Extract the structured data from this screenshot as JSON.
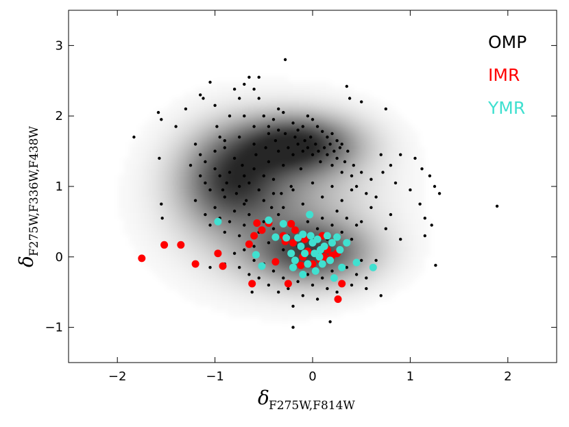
{
  "chart_data": {
    "type": "scatter",
    "xlabel": {
      "main": "δ",
      "sub": "F275W,F814W"
    },
    "ylabel": {
      "main": "δ",
      "sub": "F275W,F336W,F438W"
    },
    "xlim": [
      -2.5,
      2.5
    ],
    "ylim": [
      -1.5,
      3.5
    ],
    "x_ticks": [
      -2,
      -1,
      0,
      1,
      2
    ],
    "y_ticks": [
      -1,
      0,
      1,
      2,
      3
    ],
    "x_tick_labels": [
      "−2",
      "−1",
      "0",
      "1",
      "2"
    ],
    "y_tick_labels": [
      "−1",
      "0",
      "1",
      "2",
      "3"
    ],
    "grid": false,
    "legend_position": "top-right",
    "density_background": {
      "color": "#000000",
      "blobs": [
        {
          "x": -0.15,
          "y": 1.6,
          "sx": 0.42,
          "sy": 0.28,
          "w": 0.75
        },
        {
          "x": -0.85,
          "y": 1.1,
          "sx": 0.35,
          "sy": 0.45,
          "w": 0.55
        },
        {
          "x": 0.0,
          "y": 0.05,
          "sx": 0.42,
          "sy": 0.3,
          "w": 0.6
        },
        {
          "x": -0.4,
          "y": 0.8,
          "sx": 0.65,
          "sy": 0.7,
          "w": 0.35
        }
      ]
    },
    "series": [
      {
        "name": "OMP",
        "color": "#000000",
        "marker_size": "small",
        "points": [
          [
            -1.83,
            1.7
          ],
          [
            -1.58,
            2.05
          ],
          [
            -1.55,
            1.95
          ],
          [
            -1.57,
            1.4
          ],
          [
            -1.55,
            0.75
          ],
          [
            -1.54,
            0.55
          ],
          [
            -1.4,
            1.85
          ],
          [
            -1.3,
            2.1
          ],
          [
            -1.15,
            2.3
          ],
          [
            -1.12,
            2.25
          ],
          [
            -1.2,
            1.6
          ],
          [
            -1.25,
            1.3
          ],
          [
            -1.1,
            1.35
          ],
          [
            -1.05,
            2.48
          ],
          [
            -1.0,
            2.15
          ],
          [
            -0.98,
            1.85
          ],
          [
            -0.95,
            1.7
          ],
          [
            -0.9,
            1.55
          ],
          [
            -0.85,
            2.0
          ],
          [
            -0.8,
            2.38
          ],
          [
            -0.75,
            2.25
          ],
          [
            -0.7,
            2.0
          ],
          [
            -0.65,
            2.55
          ],
          [
            -0.6,
            2.38
          ],
          [
            -0.55,
            2.25
          ],
          [
            -0.5,
            2.0
          ],
          [
            -0.45,
            1.85
          ],
          [
            -0.4,
            1.95
          ],
          [
            -0.35,
            2.1
          ],
          [
            -0.3,
            2.05
          ],
          [
            -0.28,
            2.8
          ],
          [
            -0.2,
            1.9
          ],
          [
            -0.15,
            1.8
          ],
          [
            -0.1,
            1.85
          ],
          [
            -0.05,
            2.0
          ],
          [
            0.0,
            1.95
          ],
          [
            0.05,
            1.85
          ],
          [
            0.1,
            1.78
          ],
          [
            0.15,
            1.7
          ],
          [
            0.2,
            1.75
          ],
          [
            0.25,
            1.65
          ],
          [
            0.3,
            1.6
          ],
          [
            0.35,
            2.42
          ],
          [
            0.5,
            2.2
          ],
          [
            0.38,
            2.25
          ],
          [
            -0.55,
            2.55
          ],
          [
            -0.7,
            2.45
          ],
          [
            -1.15,
            1.15
          ],
          [
            -1.1,
            1.05
          ],
          [
            -1.05,
            0.95
          ],
          [
            -1.0,
            1.25
          ],
          [
            -0.95,
            1.15
          ],
          [
            -0.92,
            0.95
          ],
          [
            -0.9,
            0.85
          ],
          [
            -0.88,
            1.05
          ],
          [
            -0.85,
            1.2
          ],
          [
            -0.8,
            1.4
          ],
          [
            -0.78,
            0.9
          ],
          [
            -0.75,
            1.0
          ],
          [
            -0.72,
            1.3
          ],
          [
            -0.7,
            1.15
          ],
          [
            -0.68,
            0.8
          ],
          [
            -0.65,
            1.05
          ],
          [
            -0.6,
            1.25
          ],
          [
            -0.58,
            1.45
          ],
          [
            -0.55,
            0.95
          ],
          [
            -0.5,
            1.15
          ],
          [
            -0.48,
            1.55
          ],
          [
            -0.45,
            1.35
          ],
          [
            -0.42,
            0.7
          ],
          [
            -0.4,
            1.1
          ],
          [
            -0.38,
            1.65
          ],
          [
            -0.35,
            1.5
          ],
          [
            -0.32,
            0.9
          ],
          [
            -0.3,
            1.3
          ],
          [
            -0.28,
            1.75
          ],
          [
            -0.25,
            1.55
          ],
          [
            -0.22,
            1.0
          ],
          [
            -0.2,
            1.45
          ],
          [
            -0.18,
            1.7
          ],
          [
            -0.15,
            1.6
          ],
          [
            -0.12,
            1.25
          ],
          [
            -0.1,
            1.5
          ],
          [
            -0.08,
            1.65
          ],
          [
            -0.05,
            1.55
          ],
          [
            -0.02,
            1.7
          ],
          [
            0.0,
            1.45
          ],
          [
            0.03,
            1.6
          ],
          [
            0.06,
            1.5
          ],
          [
            0.08,
            1.35
          ],
          [
            0.12,
            1.55
          ],
          [
            0.15,
            1.45
          ],
          [
            0.18,
            1.6
          ],
          [
            0.2,
            1.3
          ],
          [
            0.22,
            1.5
          ],
          [
            0.25,
            1.4
          ],
          [
            0.28,
            1.55
          ],
          [
            0.3,
            1.2
          ],
          [
            0.33,
            1.35
          ],
          [
            0.36,
            1.5
          ],
          [
            0.4,
            1.15
          ],
          [
            0.42,
            1.3
          ],
          [
            0.45,
            1.0
          ],
          [
            0.5,
            1.2
          ],
          [
            0.55,
            0.9
          ],
          [
            0.6,
            1.1
          ],
          [
            0.65,
            0.85
          ],
          [
            0.7,
            1.45
          ],
          [
            0.72,
            1.2
          ],
          [
            0.75,
            2.1
          ],
          [
            0.8,
            1.3
          ],
          [
            0.85,
            1.05
          ],
          [
            0.9,
            1.45
          ],
          [
            1.0,
            0.95
          ],
          [
            1.05,
            1.4
          ],
          [
            1.1,
            0.75
          ],
          [
            1.12,
            1.25
          ],
          [
            1.15,
            0.55
          ],
          [
            1.2,
            1.15
          ],
          [
            1.22,
            0.45
          ],
          [
            1.25,
            1.0
          ],
          [
            1.3,
            0.9
          ],
          [
            1.26,
            -0.12
          ],
          [
            1.89,
            0.72
          ],
          [
            1.15,
            0.3
          ],
          [
            0.8,
            0.6
          ],
          [
            0.9,
            0.25
          ],
          [
            0.75,
            0.4
          ],
          [
            0.6,
            0.7
          ],
          [
            0.55,
            -0.3
          ],
          [
            0.65,
            -0.05
          ],
          [
            0.7,
            -0.55
          ],
          [
            0.5,
            0.5
          ],
          [
            -1.2,
            0.8
          ],
          [
            -1.1,
            0.6
          ],
          [
            -1.05,
            0.45
          ],
          [
            -1.0,
            0.7
          ],
          [
            -0.95,
            0.55
          ],
          [
            -0.9,
            0.35
          ],
          [
            -0.85,
            0.5
          ],
          [
            -0.8,
            0.65
          ],
          [
            -0.75,
            0.3
          ],
          [
            -0.7,
            0.45
          ],
          [
            -0.65,
            0.6
          ],
          [
            -0.6,
            0.15
          ],
          [
            -0.55,
            0.35
          ],
          [
            -0.5,
            0.5
          ],
          [
            -0.45,
            0.2
          ],
          [
            -0.4,
            0.4
          ],
          [
            -0.35,
            0.6
          ],
          [
            -0.3,
            0.1
          ],
          [
            -0.25,
            0.3
          ],
          [
            -0.2,
            0.45
          ],
          [
            -0.15,
            0.15
          ],
          [
            -0.1,
            0.35
          ],
          [
            -0.05,
            0.5
          ],
          [
            0.0,
            0.2
          ],
          [
            0.05,
            0.4
          ],
          [
            0.1,
            0.55
          ],
          [
            0.15,
            0.25
          ],
          [
            0.2,
            0.45
          ],
          [
            0.25,
            0.65
          ],
          [
            0.3,
            0.35
          ],
          [
            0.35,
            0.55
          ],
          [
            0.4,
            0.25
          ],
          [
            0.45,
            0.45
          ],
          [
            -0.8,
            0.05
          ],
          [
            -0.75,
            -0.15
          ],
          [
            -0.7,
            0.1
          ],
          [
            -0.65,
            -0.25
          ],
          [
            -0.6,
            -0.05
          ],
          [
            -0.55,
            -0.3
          ],
          [
            -0.5,
            -0.1
          ],
          [
            -0.45,
            -0.4
          ],
          [
            -0.4,
            -0.2
          ],
          [
            -0.35,
            -0.5
          ],
          [
            -0.3,
            -0.3
          ],
          [
            -0.25,
            -0.45
          ],
          [
            -0.2,
            -0.15
          ],
          [
            -0.15,
            -0.35
          ],
          [
            -0.1,
            -0.55
          ],
          [
            -0.05,
            -0.25
          ],
          [
            0.0,
            -0.4
          ],
          [
            0.05,
            -0.6
          ],
          [
            0.1,
            -0.3
          ],
          [
            0.15,
            -0.45
          ],
          [
            0.2,
            -0.2
          ],
          [
            0.25,
            -0.5
          ],
          [
            0.3,
            -0.35
          ],
          [
            0.35,
            -0.15
          ],
          [
            0.4,
            -0.4
          ],
          [
            0.45,
            -0.25
          ],
          [
            0.5,
            -0.05
          ],
          [
            -0.62,
            -0.5
          ],
          [
            -0.2,
            -0.7
          ],
          [
            0.18,
            -0.92
          ],
          [
            -0.2,
            -1.0
          ],
          [
            0.55,
            -0.45
          ],
          [
            -0.9,
            -0.1
          ],
          [
            -1.05,
            -0.15
          ],
          [
            -0.3,
            0.7
          ],
          [
            -0.1,
            0.75
          ],
          [
            0.1,
            0.85
          ],
          [
            0.3,
            0.8
          ],
          [
            -0.5,
            0.8
          ],
          [
            -0.7,
            0.75
          ],
          [
            0.2,
            1.0
          ],
          [
            0.0,
            1.05
          ],
          [
            -0.2,
            0.95
          ],
          [
            -0.4,
            0.9
          ],
          [
            0.4,
            0.95
          ],
          [
            -0.6,
            1.6
          ],
          [
            -0.75,
            1.7
          ],
          [
            -0.9,
            1.65
          ],
          [
            -1.0,
            1.5
          ],
          [
            -1.15,
            1.45
          ],
          [
            -0.45,
            1.75
          ],
          [
            -0.6,
            1.85
          ],
          [
            -0.35,
            1.8
          ]
        ]
      },
      {
        "name": "IMR",
        "color": "#ff0000",
        "marker_size": "large",
        "points": [
          [
            -1.75,
            -0.02
          ],
          [
            -1.52,
            0.17
          ],
          [
            -1.35,
            0.17
          ],
          [
            -1.2,
            -0.1
          ],
          [
            -0.97,
            0.05
          ],
          [
            -0.92,
            -0.13
          ],
          [
            -0.65,
            0.18
          ],
          [
            -0.62,
            -0.38
          ],
          [
            -0.6,
            0.3
          ],
          [
            -0.57,
            0.48
          ],
          [
            -0.52,
            0.38
          ],
          [
            -0.45,
            0.48
          ],
          [
            -0.38,
            -0.07
          ],
          [
            -0.3,
            0.3
          ],
          [
            -0.28,
            0.22
          ],
          [
            -0.25,
            -0.38
          ],
          [
            -0.22,
            0.47
          ],
          [
            -0.2,
            0.2
          ],
          [
            -0.18,
            0.38
          ],
          [
            -0.1,
            0.0
          ],
          [
            -0.05,
            0.08
          ],
          [
            0.0,
            -0.1
          ],
          [
            0.05,
            0.05
          ],
          [
            0.08,
            -0.05
          ],
          [
            0.1,
            0.3
          ],
          [
            0.12,
            0.0
          ],
          [
            0.15,
            0.1
          ],
          [
            0.18,
            -0.05
          ],
          [
            0.2,
            0.02
          ],
          [
            0.25,
            0.05
          ],
          [
            0.26,
            -0.6
          ],
          [
            0.3,
            -0.38
          ],
          [
            -0.12,
            -0.12
          ],
          [
            -0.08,
            0.25
          ]
        ]
      },
      {
        "name": "YMR",
        "color": "#40e0d0",
        "marker_size": "large",
        "points": [
          [
            -0.97,
            0.5
          ],
          [
            -0.58,
            0.03
          ],
          [
            -0.52,
            -0.13
          ],
          [
            -0.45,
            0.52
          ],
          [
            -0.38,
            0.28
          ],
          [
            -0.3,
            0.47
          ],
          [
            -0.27,
            0.27
          ],
          [
            -0.22,
            0.05
          ],
          [
            -0.18,
            -0.05
          ],
          [
            -0.15,
            0.27
          ],
          [
            -0.12,
            0.15
          ],
          [
            -0.1,
            0.32
          ],
          [
            -0.08,
            0.05
          ],
          [
            -0.05,
            -0.1
          ],
          [
            -0.03,
            0.6
          ],
          [
            -0.02,
            0.3
          ],
          [
            0.0,
            0.2
          ],
          [
            0.02,
            0.05
          ],
          [
            0.03,
            -0.2
          ],
          [
            0.05,
            0.25
          ],
          [
            0.07,
            0.0
          ],
          [
            0.1,
            -0.1
          ],
          [
            0.12,
            0.15
          ],
          [
            0.15,
            0.3
          ],
          [
            0.18,
            -0.05
          ],
          [
            0.2,
            0.2
          ],
          [
            0.22,
            -0.3
          ],
          [
            0.25,
            0.28
          ],
          [
            0.28,
            0.1
          ],
          [
            0.3,
            -0.15
          ],
          [
            0.35,
            0.2
          ],
          [
            0.45,
            -0.08
          ],
          [
            0.62,
            -0.15
          ],
          [
            -0.2,
            -0.15
          ],
          [
            -0.1,
            -0.25
          ],
          [
            0.08,
            0.1
          ]
        ]
      }
    ]
  }
}
